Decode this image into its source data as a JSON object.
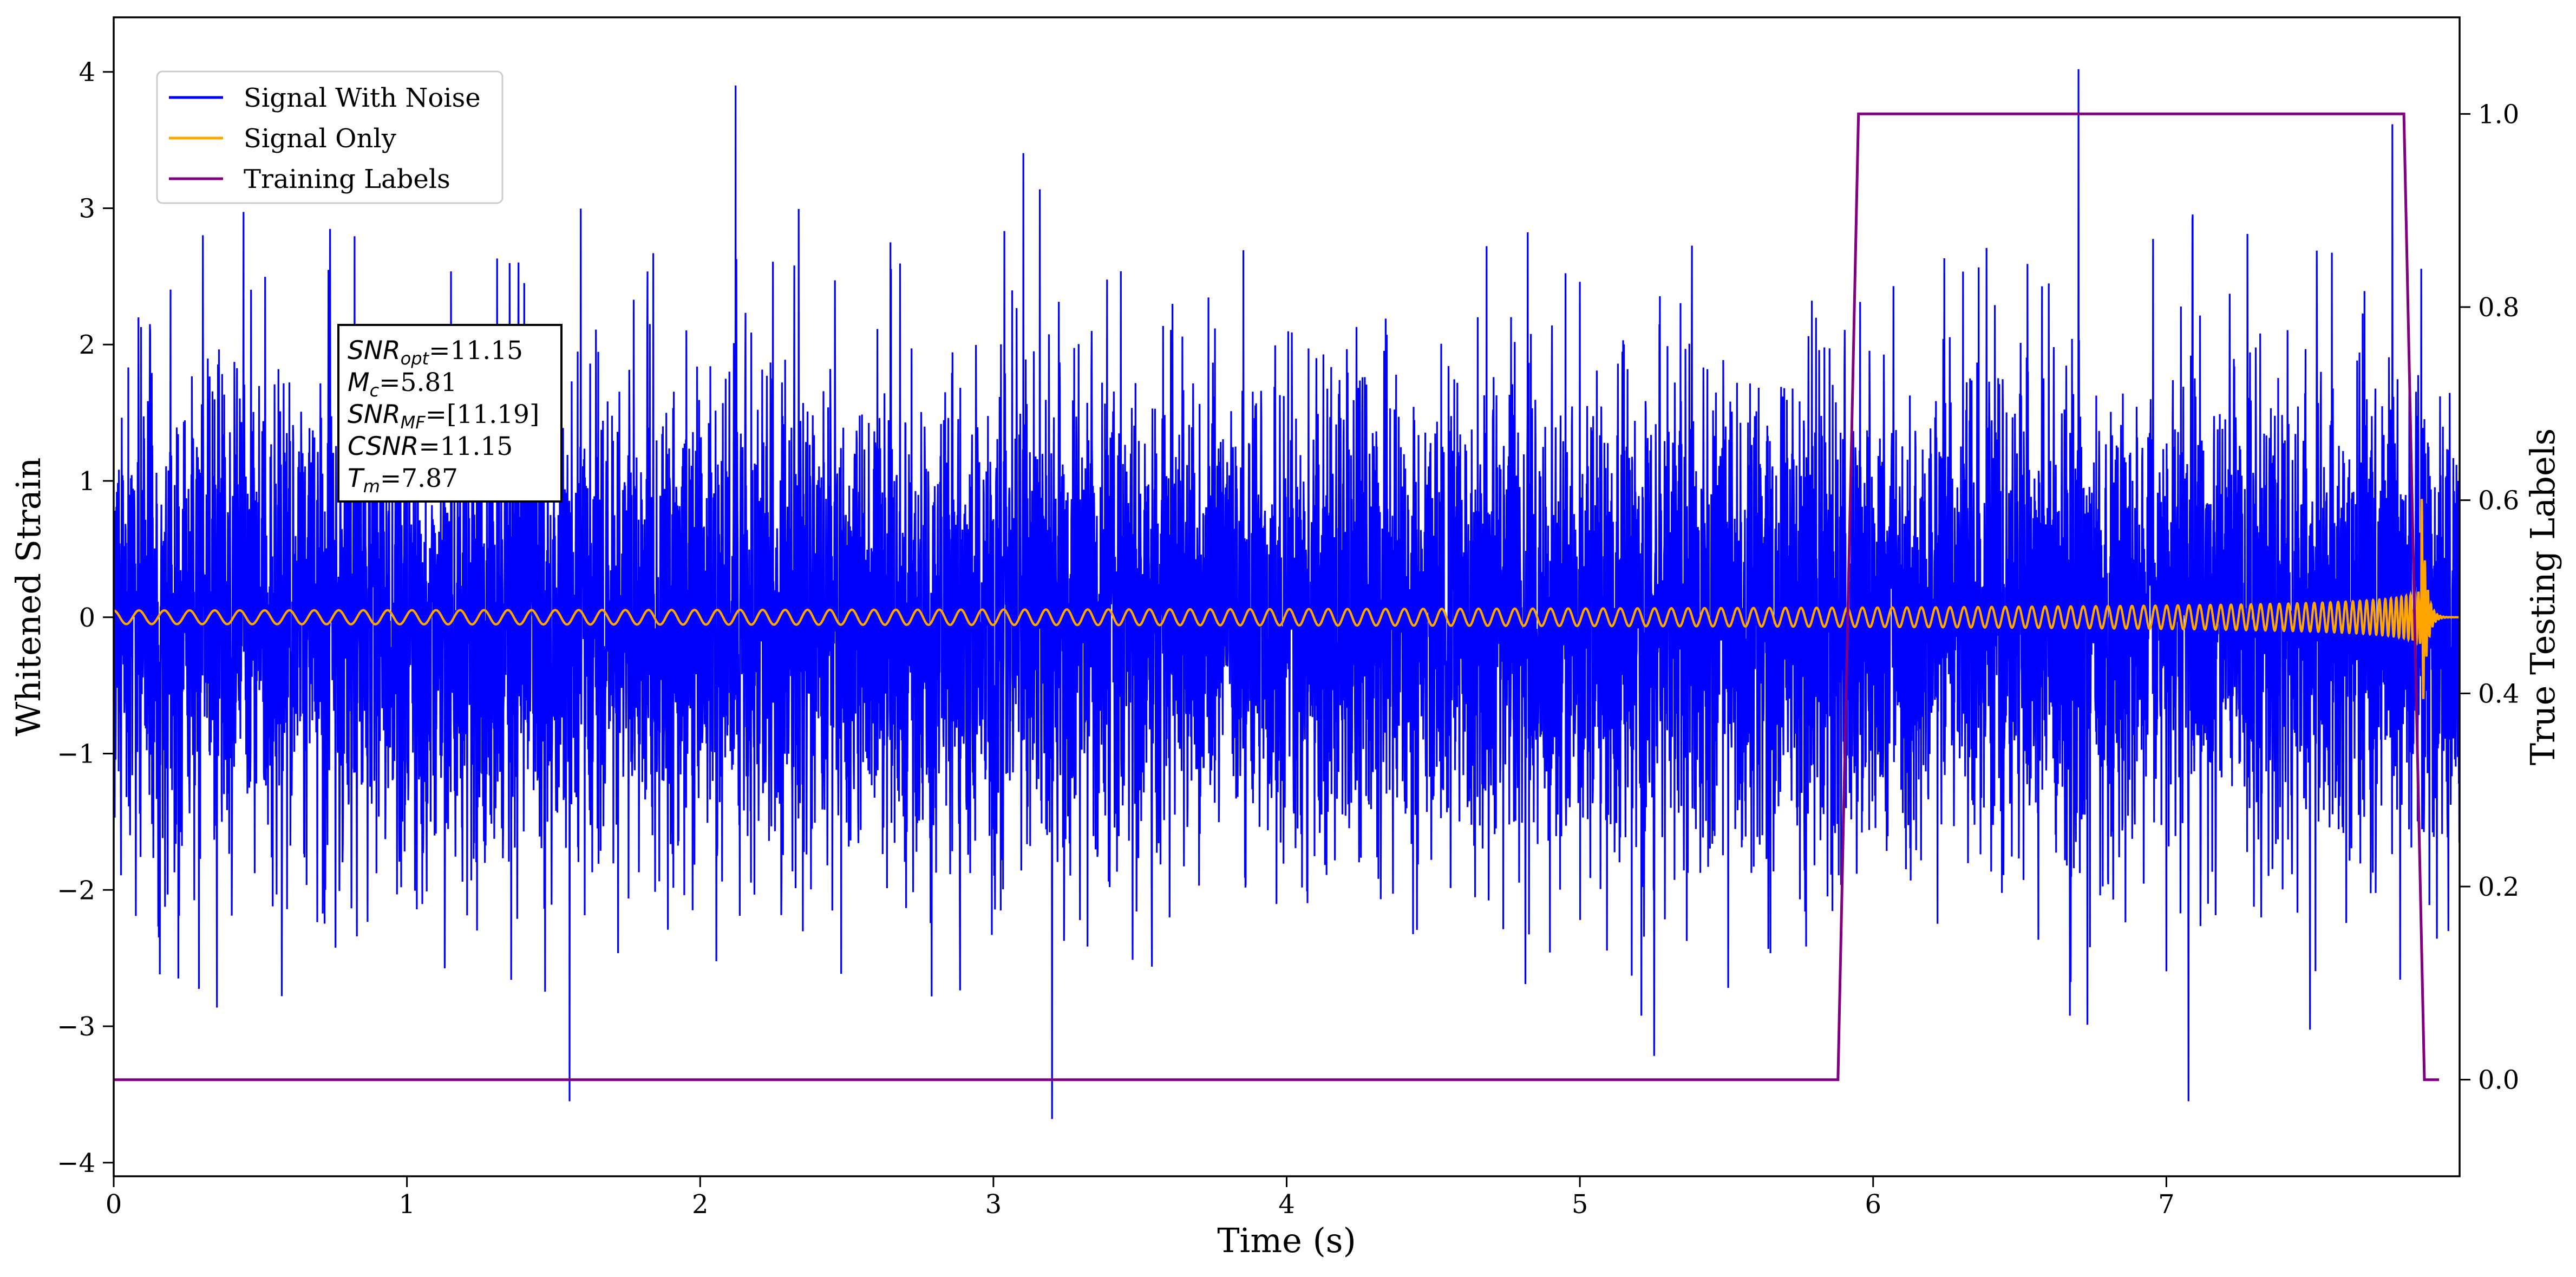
{
  "chart_data": {
    "type": "line",
    "xlabel": "Time (s)",
    "ylabel": "Whitened Strain",
    "y2label": "True Testing Labels",
    "xlim": [
      0,
      8
    ],
    "ylim": [
      -4.1,
      4.4
    ],
    "y2lim": [
      -0.1,
      1.1
    ],
    "xticks": [
      "0",
      "1",
      "2",
      "3",
      "4",
      "5",
      "6",
      "7"
    ],
    "yticks": [
      "−4",
      "−3",
      "−2",
      "−1",
      "0",
      "1",
      "2",
      "3",
      "4"
    ],
    "y2ticks": [
      "0.0",
      "0.2",
      "0.4",
      "0.6",
      "0.8",
      "1.0"
    ],
    "grid": false,
    "legend_position": "top-left",
    "series": [
      {
        "name": "Signal With Noise",
        "color": "#0000ff",
        "axis": "left",
        "description_values": "gaussian-like noise around 0, amplitude roughly ±1 typical with spikes to about ±3.9",
        "extremes": {
          "max": 4.02,
          "max_at": 6.7,
          "min": -3.68,
          "min_at": 3.2
        }
      },
      {
        "name": "Signal Only",
        "color": "#ffa500",
        "axis": "left",
        "chirp": {
          "start_amplitude": 0.05,
          "end_amplitude": 1.05,
          "merger_time": 7.87,
          "end_time": 8.0
        }
      },
      {
        "name": "Training Labels",
        "color": "#800080",
        "axis": "right",
        "x": [
          0,
          5.88,
          5.95,
          7.81,
          7.88,
          7.93
        ],
        "y": [
          0,
          0,
          1,
          1,
          0,
          0
        ]
      }
    ],
    "annotation": {
      "lines": [
        {
          "sym": "SNR",
          "sub": "opt",
          "val": "=11.15"
        },
        {
          "sym": "M",
          "sub": "c",
          "val": "=5.81"
        },
        {
          "sym": "SNR",
          "sub": "MF",
          "val": "=[11.19]"
        },
        {
          "sym": "CSNR",
          "sub": "",
          "val": "=11.15"
        },
        {
          "sym": "T",
          "sub": "m",
          "val": "=7.87"
        }
      ]
    }
  }
}
